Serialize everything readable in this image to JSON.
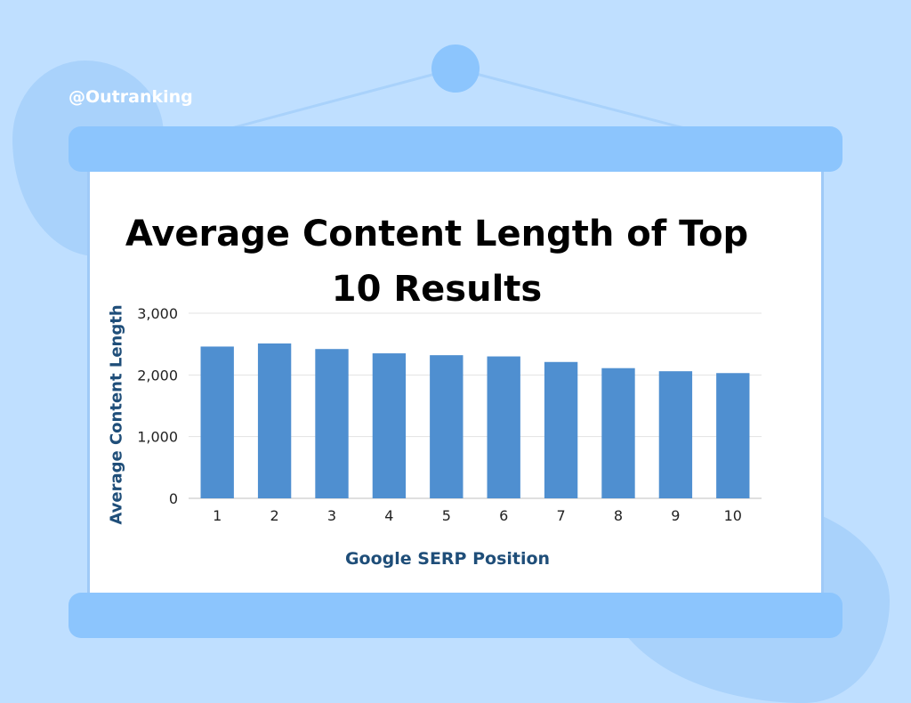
{
  "brand": "@Outranking",
  "colors": {
    "background": "#bfdfff",
    "accent": "#8cc5fd",
    "bar": "#4f8fd0",
    "label": "#1f4e79"
  },
  "chart_data": {
    "type": "bar",
    "title": "Average Content Length of Top 10 Results",
    "title_lines": [
      "Average Content Length of Top",
      "10 Results"
    ],
    "xlabel": "Google SERP Position",
    "ylabel": "Average Content Length",
    "categories": [
      "1",
      "2",
      "3",
      "4",
      "5",
      "6",
      "7",
      "8",
      "9",
      "10"
    ],
    "values": [
      2460,
      2510,
      2420,
      2350,
      2320,
      2300,
      2210,
      2110,
      2060,
      2030
    ],
    "ylim": [
      0,
      3000
    ],
    "yticks": [
      0,
      1000,
      2000,
      3000
    ],
    "ytick_labels": [
      "0",
      "1,000",
      "2,000",
      "3,000"
    ],
    "grid": true,
    "legend": "none"
  }
}
